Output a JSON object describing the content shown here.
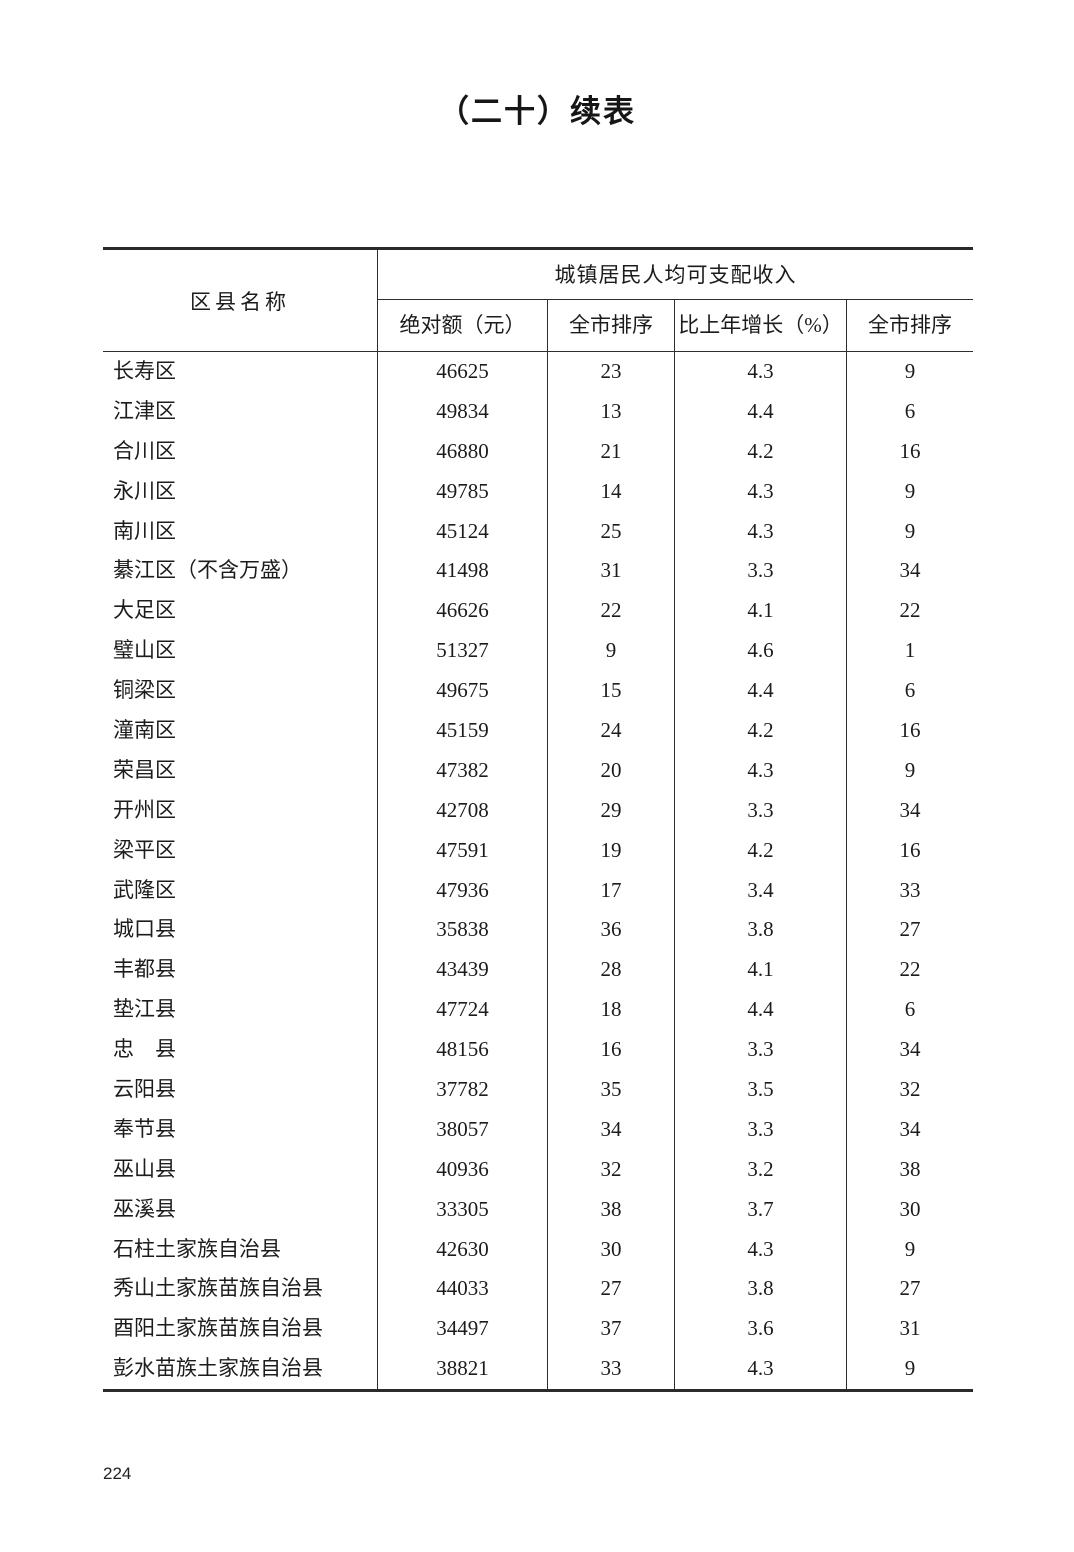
{
  "page": {
    "title": "（二十）续表",
    "page_number": "224",
    "text_color": "#1c1c1c",
    "line_color": "#2e2e2e",
    "background_color": "#ffffff"
  },
  "table": {
    "col1_header": "区县名称",
    "group_header": "城镇居民人均可支配收入",
    "sub_headers": [
      "绝对额（元）",
      "全市排序",
      "比上年增长（%）",
      "全市排序"
    ],
    "rows": [
      [
        "长寿区",
        "46625",
        "23",
        "4.3",
        "9"
      ],
      [
        "江津区",
        "49834",
        "13",
        "4.4",
        "6"
      ],
      [
        "合川区",
        "46880",
        "21",
        "4.2",
        "16"
      ],
      [
        "永川区",
        "49785",
        "14",
        "4.3",
        "9"
      ],
      [
        "南川区",
        "45124",
        "25",
        "4.3",
        "9"
      ],
      [
        "綦江区（不含万盛）",
        "41498",
        "31",
        "3.3",
        "34"
      ],
      [
        "大足区",
        "46626",
        "22",
        "4.1",
        "22"
      ],
      [
        "璧山区",
        "51327",
        "9",
        "4.6",
        "1"
      ],
      [
        "铜梁区",
        "49675",
        "15",
        "4.4",
        "6"
      ],
      [
        "潼南区",
        "45159",
        "24",
        "4.2",
        "16"
      ],
      [
        "荣昌区",
        "47382",
        "20",
        "4.3",
        "9"
      ],
      [
        "开州区",
        "42708",
        "29",
        "3.3",
        "34"
      ],
      [
        "梁平区",
        "47591",
        "19",
        "4.2",
        "16"
      ],
      [
        "武隆区",
        "47936",
        "17",
        "3.4",
        "33"
      ],
      [
        "城口县",
        "35838",
        "36",
        "3.8",
        "27"
      ],
      [
        "丰都县",
        "43439",
        "28",
        "4.1",
        "22"
      ],
      [
        "垫江县",
        "47724",
        "18",
        "4.4",
        "6"
      ],
      [
        "忠　县",
        "48156",
        "16",
        "3.3",
        "34"
      ],
      [
        "云阳县",
        "37782",
        "35",
        "3.5",
        "32"
      ],
      [
        "奉节县",
        "38057",
        "34",
        "3.3",
        "34"
      ],
      [
        "巫山县",
        "40936",
        "32",
        "3.2",
        "38"
      ],
      [
        "巫溪县",
        "33305",
        "38",
        "3.7",
        "30"
      ],
      [
        "石柱土家族自治县",
        "42630",
        "30",
        "4.3",
        "9"
      ],
      [
        "秀山土家族苗族自治县",
        "44033",
        "27",
        "3.8",
        "27"
      ],
      [
        "酉阳土家族苗族自治县",
        "34497",
        "37",
        "3.6",
        "31"
      ],
      [
        "彭水苗族土家族自治县",
        "38821",
        "33",
        "4.3",
        "9"
      ]
    ]
  }
}
